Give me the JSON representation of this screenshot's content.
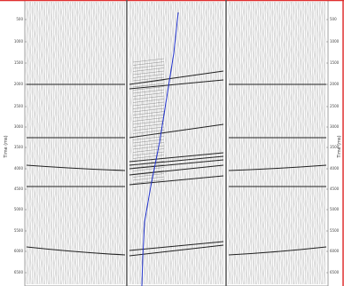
{
  "axis": {
    "left_label": "Time (ms)",
    "right_label": "Time (ms)",
    "ticks": [
      "500",
      "1000",
      "1500",
      "2000",
      "2500",
      "3000",
      "3500",
      "4000",
      "4500",
      "5000",
      "5500",
      "6000",
      "6500"
    ]
  }
}
